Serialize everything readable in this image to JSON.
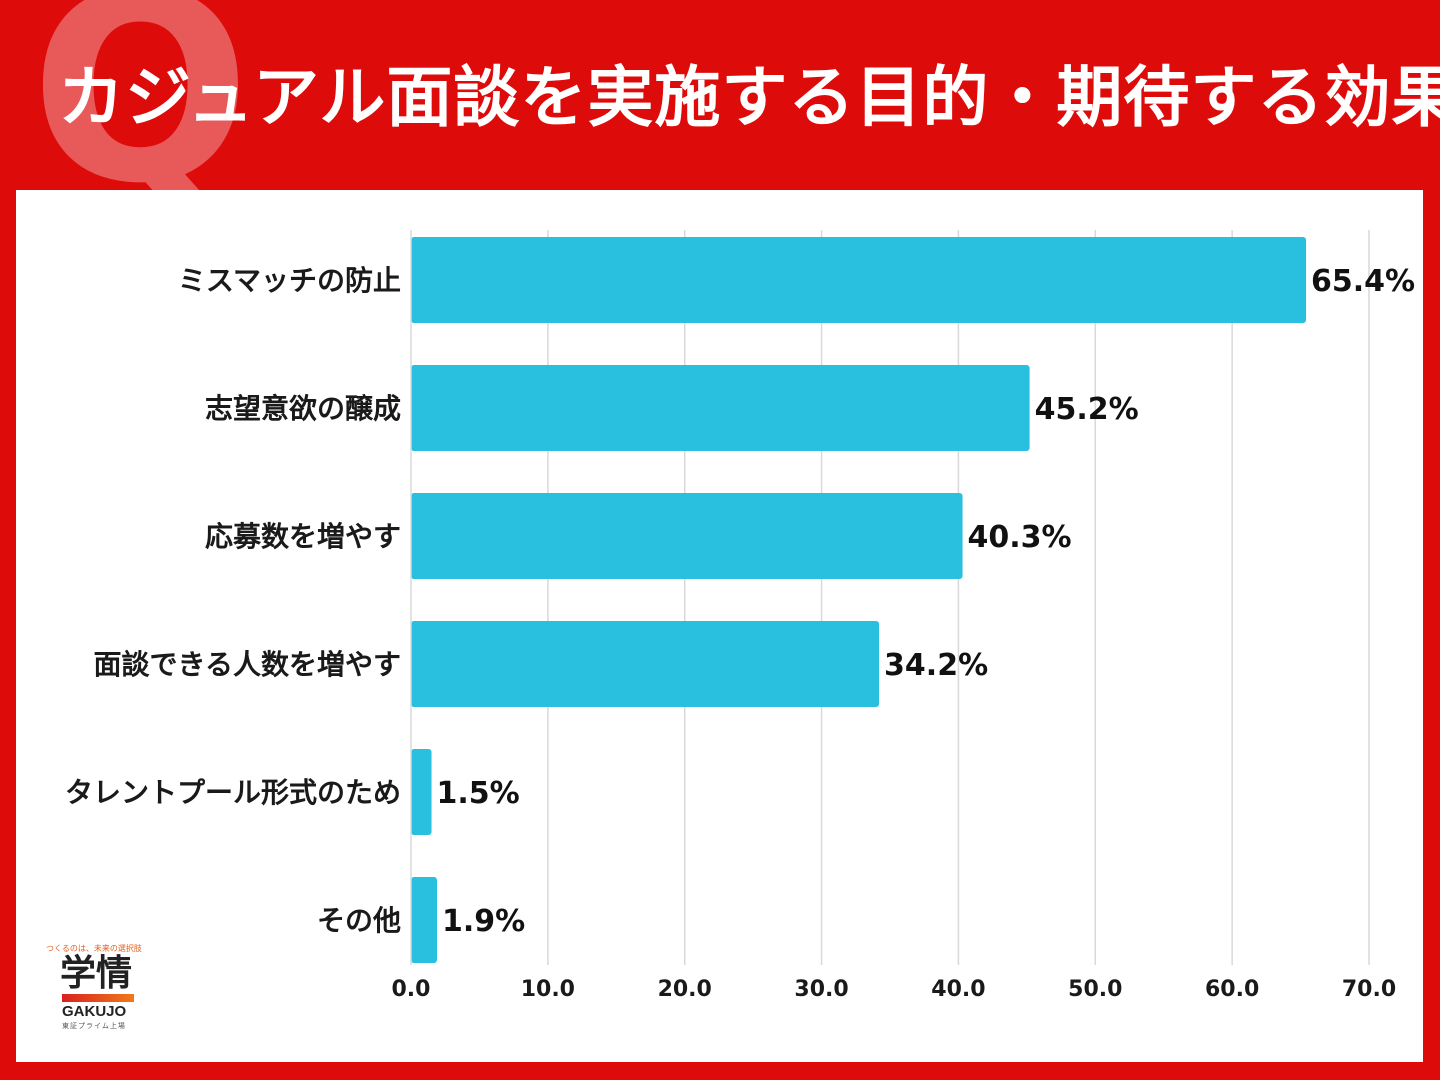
{
  "header": {
    "q_mark": "Q",
    "title": "カジュアル面談を実施する目的・期待する効果"
  },
  "logo": {
    "tagline": "つくるのは、未来の選択肢",
    "name": "学情",
    "romaji": "GAKUJO",
    "listing": "東証プライム上場"
  },
  "colors": {
    "background": "#de0b0b",
    "bar": "#29c0e0",
    "grid": "#d9d9d9"
  },
  "chart_data": {
    "type": "bar",
    "orientation": "horizontal",
    "categories": [
      "ミスマッチの防止",
      "志望意欲の醸成",
      "応募数を増やす",
      "面談できる人数を増やす",
      "タレントプール形式のため",
      "その他"
    ],
    "values": [
      65.4,
      45.2,
      40.3,
      34.2,
      1.5,
      1.9
    ],
    "value_labels": [
      "65.4%",
      "45.2%",
      "40.3%",
      "34.2%",
      "1.5%",
      "1.9%"
    ],
    "xlim": [
      0,
      70
    ],
    "xticks": [
      "0.0",
      "10.0",
      "20.0",
      "30.0",
      "40.0",
      "50.0",
      "60.0",
      "70.0"
    ],
    "xtick_values": [
      0,
      10,
      20,
      30,
      40,
      50,
      60,
      70
    ],
    "grid": "vertical",
    "legend": "none"
  }
}
